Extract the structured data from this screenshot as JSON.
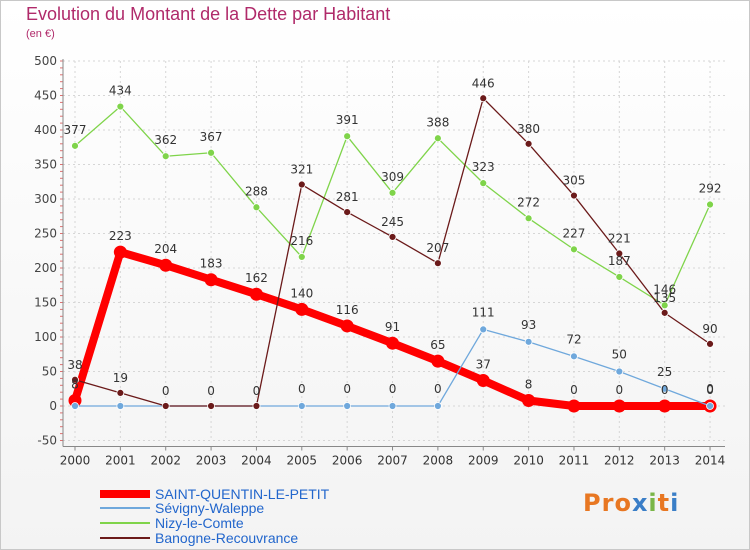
{
  "title": "Evolution du Montant de la Dette par Habitant",
  "unit": "(en €)",
  "logo": "Proxiti",
  "chart_data": {
    "type": "line",
    "title": "Evolution du Montant de la Dette par Habitant",
    "ylabel": "(en €)",
    "xlabel": "",
    "ylim": [
      -50,
      500
    ],
    "yticks": [
      -50,
      0,
      50,
      100,
      150,
      200,
      250,
      300,
      350,
      400,
      450,
      500
    ],
    "categories": [
      "2000",
      "2001",
      "2002",
      "2003",
      "2004",
      "2005",
      "2006",
      "2007",
      "2008",
      "2009",
      "2010",
      "2011",
      "2012",
      "2013",
      "2014"
    ],
    "legend_position": "bottom-left",
    "series": [
      {
        "name": "SAINT-QUENTIN-LE-PETIT",
        "color": "#ff0000",
        "values": [
          8,
          223,
          204,
          183,
          162,
          140,
          116,
          91,
          65,
          37,
          8,
          0,
          0,
          0,
          0
        ],
        "labels": [
          "8",
          "223",
          "204",
          "183",
          "162",
          "140",
          "116",
          "91",
          "65",
          "37",
          "8",
          "0",
          "0",
          "0",
          "0"
        ]
      },
      {
        "name": "Sévigny-Waleppe",
        "color": "#6fa8dc",
        "values": [
          0,
          0,
          0,
          0,
          0,
          0,
          0,
          0,
          0,
          111,
          93,
          72,
          50,
          25,
          0
        ],
        "labels": [
          "",
          "",
          "",
          "",
          "",
          "0",
          "0",
          "0",
          "0",
          "111",
          "93",
          "72",
          "50",
          "25",
          "0"
        ]
      },
      {
        "name": "Nizy-le-Comte",
        "color": "#7fd44a",
        "values": [
          377,
          434,
          362,
          367,
          288,
          216,
          391,
          309,
          388,
          323,
          272,
          227,
          187,
          146,
          292
        ],
        "labels": [
          "377",
          "434",
          "362",
          "367",
          "288",
          "216",
          "391",
          "309",
          "388",
          "323",
          "272",
          "227",
          "187",
          "146",
          "292"
        ]
      },
      {
        "name": "Banogne-Recouvrance",
        "color": "#6b1a1a",
        "values": [
          38,
          19,
          0,
          0,
          0,
          321,
          281,
          245,
          207,
          446,
          380,
          305,
          221,
          135,
          90
        ],
        "labels": [
          "38",
          "19",
          "0",
          "0",
          "0",
          "321",
          "281",
          "245",
          "207",
          "446",
          "380",
          "305",
          "221",
          "135",
          "90"
        ]
      }
    ]
  }
}
